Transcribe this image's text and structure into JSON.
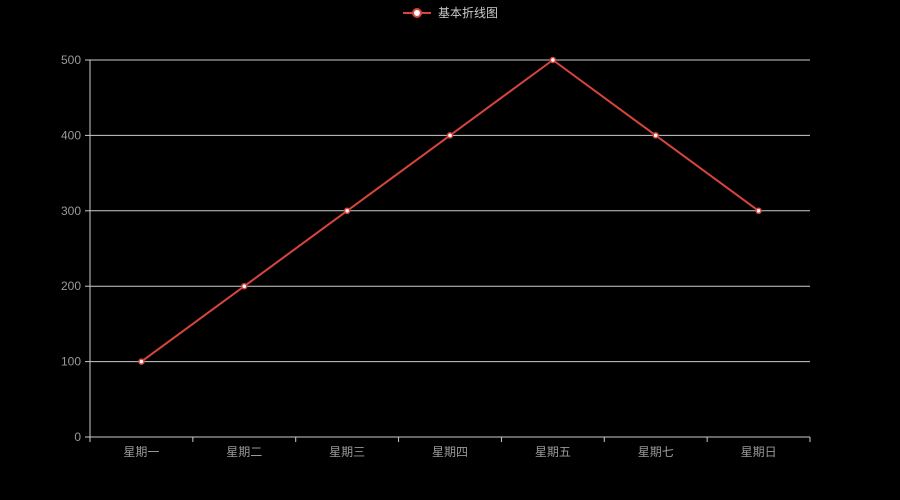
{
  "page": {
    "background": "#000000"
  },
  "legend": {
    "label": "基本折线图",
    "marker": "line-with-circle",
    "marker_color": "#d9443d",
    "marker_fill": "#ffffff",
    "text_color": "#cccccc"
  },
  "chart_data": {
    "type": "line",
    "title": "基本折线图",
    "categories": [
      "星期一",
      "星期二",
      "星期三",
      "星期四",
      "星期五",
      "星期七",
      "星期日"
    ],
    "series": [
      {
        "name": "基本折线图",
        "values": [
          100,
          200,
          300,
          400,
          500,
          400,
          300
        ],
        "color": "#d9443d",
        "marker": "circle",
        "marker_fill": "#ffffff"
      }
    ],
    "xlabel": "",
    "ylabel": "",
    "ylim": [
      0,
      500
    ],
    "y_ticks": [
      0,
      100,
      200,
      300,
      400,
      500
    ],
    "grid": true,
    "legend_position": "top-center",
    "axis_label_color": "#999999",
    "grid_color": "#cccccc",
    "axis_color": "#cccccc",
    "plot_background": "#000000"
  }
}
